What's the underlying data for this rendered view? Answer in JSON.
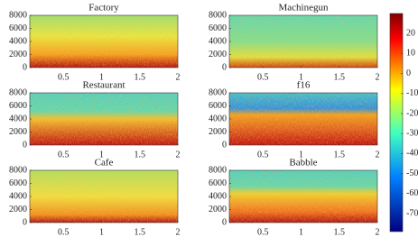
{
  "chart_data": [
    {
      "type": "spectrogram",
      "title": "Factory",
      "xlim": [
        0.06,
        2
      ],
      "xticks": [
        0.5,
        1,
        1.5,
        2
      ],
      "ylim": [
        0,
        8000
      ],
      "yticks": [
        0,
        2000,
        4000,
        6000,
        8000
      ]
    },
    {
      "type": "spectrogram",
      "title": "Machinegun",
      "xlim": [
        0.06,
        2
      ],
      "xticks": [
        0.5,
        1,
        1.5,
        2
      ],
      "ylim": [
        0,
        8000
      ],
      "yticks": [
        0,
        2000,
        4000,
        6000,
        8000
      ]
    },
    {
      "type": "spectrogram",
      "title": "Restaurant",
      "xlim": [
        0.06,
        2
      ],
      "xticks": [
        0.5,
        1,
        1.5,
        2
      ],
      "ylim": [
        0,
        8000
      ],
      "yticks": [
        0,
        2000,
        4000,
        6000,
        8000
      ]
    },
    {
      "type": "spectrogram",
      "title": "f16",
      "xlim": [
        0.06,
        2
      ],
      "xticks": [
        0.5,
        1,
        1.5,
        2
      ],
      "ylim": [
        0,
        8000
      ],
      "yticks": [
        0,
        2000,
        4000,
        6000,
        8000
      ]
    },
    {
      "type": "spectrogram",
      "title": "Cafe",
      "xlim": [
        0.06,
        2
      ],
      "xticks": [
        0.5,
        1,
        1.5,
        2
      ],
      "ylim": [
        0,
        8000
      ],
      "yticks": [
        0,
        2000,
        4000,
        6000,
        8000
      ]
    },
    {
      "type": "spectrogram",
      "title": "Babble",
      "xlim": [
        0.06,
        2
      ],
      "xticks": [
        0.5,
        1,
        1.5,
        2
      ],
      "ylim": [
        0,
        8000
      ],
      "yticks": [
        0,
        2000,
        4000,
        6000,
        8000
      ]
    },
    {
      "type": "colorbar",
      "ylim": [
        -79,
        30
      ],
      "yticks": [
        20,
        10,
        0,
        -10,
        -20,
        -30,
        -40,
        -50,
        -60,
        -70
      ]
    }
  ]
}
